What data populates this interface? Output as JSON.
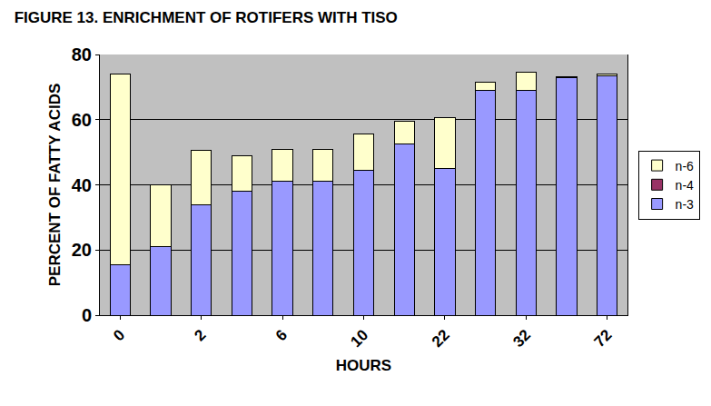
{
  "chart_data": {
    "type": "bar",
    "title": "FIGURE 13. ENRICHMENT OF ROTIFERS WITH TISO",
    "x_label": "HOURS",
    "y_label": "PERCENT OF FATTY ACIDS",
    "categories": [
      "0",
      null,
      "2",
      null,
      "6",
      null,
      "10",
      null,
      "22",
      null,
      "32",
      null,
      "72"
    ],
    "series": [
      {
        "name": "n-3",
        "color": "#9999ff",
        "values": [
          15.5,
          21,
          34,
          38,
          41,
          41,
          44.5,
          52.5,
          45,
          69,
          69,
          73,
          73.5
        ]
      },
      {
        "name": "n-4",
        "color": "#993366",
        "values": [
          0,
          0,
          0,
          0,
          0,
          0,
          0,
          0,
          0,
          0,
          0,
          0,
          0
        ]
      },
      {
        "name": "n-6",
        "color": "#ffffcc",
        "values": [
          58.5,
          19,
          16.5,
          11,
          10,
          10,
          11,
          7,
          15.5,
          2.5,
          5.5,
          0.3,
          0.5
        ]
      }
    ],
    "stacked": true,
    "ylim": [
      0,
      80
    ],
    "yticks": [
      0,
      20,
      40,
      60,
      80
    ],
    "grid": true,
    "legend": "right"
  }
}
